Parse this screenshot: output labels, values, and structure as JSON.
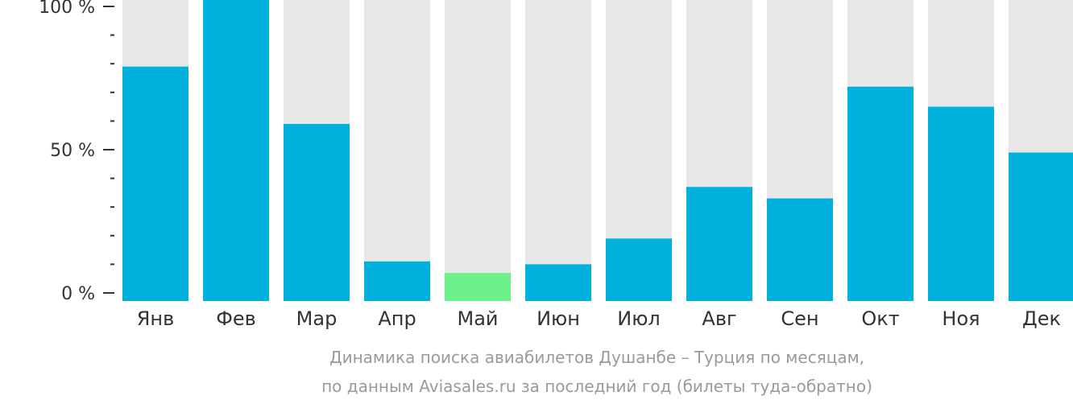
{
  "chart_data": {
    "type": "bar",
    "categories": [
      "Янв",
      "Фев",
      "Мар",
      "Апр",
      "Май",
      "Июн",
      "Июл",
      "Авг",
      "Сен",
      "Окт",
      "Ноя",
      "Дек"
    ],
    "values": [
      79,
      100,
      59,
      11,
      7,
      10,
      19,
      37,
      33,
      72,
      65,
      49
    ],
    "ylim": [
      0,
      100
    ],
    "yticks": [
      {
        "value": 0,
        "label": "0 %"
      },
      {
        "value": 50,
        "label": "50 %"
      },
      {
        "value": 100,
        "label": "100 %"
      }
    ],
    "minor_ticks": [
      10,
      20,
      30,
      40,
      60,
      70,
      80,
      90
    ],
    "highlight_index": 4,
    "colors": {
      "bar": "#00b0dd",
      "highlight": "#6cf08a",
      "background_bar": "#e8e8e8",
      "axis": "#333333"
    },
    "caption_lines": [
      "Динамика поиска авиабилетов Душанбе – Турция по месяцам,",
      "по данным Aviasales.ru за последний год (билеты туда-обратно)"
    ]
  }
}
